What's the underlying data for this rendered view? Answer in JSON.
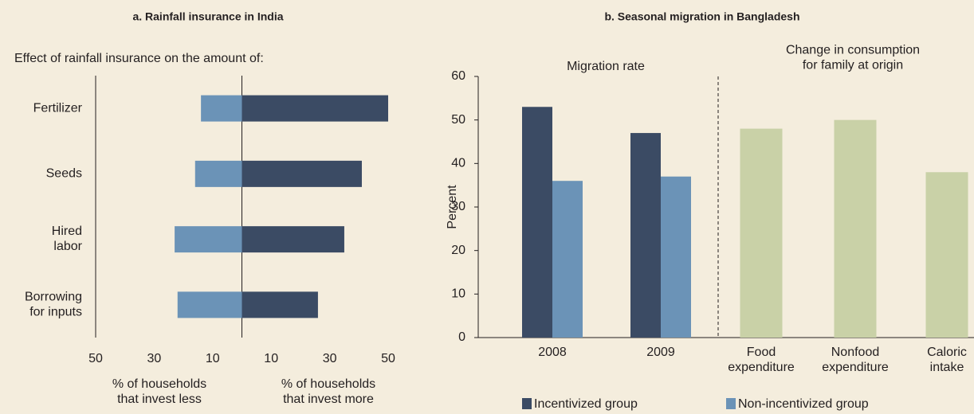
{
  "chart_data": [
    {
      "type": "diverging-bar",
      "title": "a. Rainfall insurance in India",
      "subtitle": "Effect of rainfall insurance on the amount of:",
      "categories": [
        "Fertilizer",
        "Seeds",
        "Hired\nlabor",
        "Borrowing\nfor inputs"
      ],
      "series": [
        {
          "color": "#6b93b7",
          "values": [
            -14,
            -16,
            -23,
            -22
          ]
        },
        {
          "color": "#3b4b64",
          "values": [
            50,
            41,
            35,
            26
          ]
        }
      ],
      "xlim": [
        -50,
        50
      ],
      "xticks": [
        {
          "value": -50,
          "label": "50"
        },
        {
          "value": -30,
          "label": "30"
        },
        {
          "value": -10,
          "label": "10"
        },
        10,
        30,
        50
      ],
      "x_labels": [
        "% of households\nthat invest less",
        "% of households\nthat invest more"
      ]
    },
    {
      "type": "bar",
      "title": "b. Seasonal migration in Bangladesh",
      "ylabel": "Percent",
      "annotations": [
        "Migration rate",
        "Change  in consumption\nfor family at origin"
      ],
      "categories": [
        "2008",
        "2009",
        "Food\nexpenditure",
        "Nonfood\nexpenditure",
        "Caloric\nintake"
      ],
      "series": [
        {
          "name": "Incentivized group",
          "color": "#3b4b64",
          "values": [
            53,
            47,
            null,
            null,
            null
          ]
        },
        {
          "name": "Non-incentivized group",
          "color": "#6b93b7",
          "values": [
            36,
            37,
            null,
            null,
            null
          ]
        },
        {
          "color": "#c9d1a7",
          "values": [
            null,
            null,
            48,
            50,
            38
          ]
        }
      ],
      "ylim": [
        0,
        60
      ],
      "yticks": [
        0,
        10,
        20,
        30,
        40,
        50,
        60
      ]
    }
  ]
}
